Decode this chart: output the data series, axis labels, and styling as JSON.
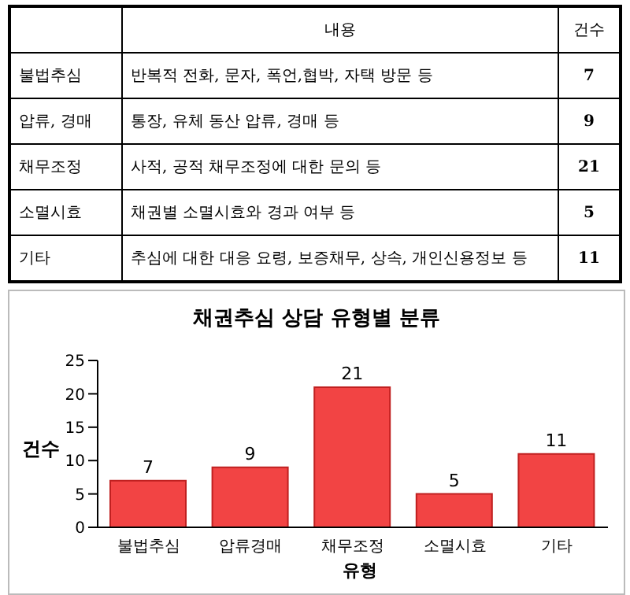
{
  "chart_data": {
    "type": "bar",
    "title": "채권추심 상담 유형별 분류",
    "xlabel": "유형",
    "ylabel": "건수",
    "categories": [
      "불법추심",
      "압류경매",
      "채무조정",
      "소멸시효",
      "기타"
    ],
    "values": [
      7,
      9,
      21,
      5,
      11
    ],
    "color": "#f24444",
    "ylim": [
      0,
      25
    ],
    "yticks": [
      0,
      5,
      10,
      15,
      20,
      25
    ],
    "grid": false,
    "legend": false,
    "data_labels": true,
    "annotations": [
      "내용",
      "건수",
      "불법추심",
      "반복적 전화, 문자, 폭언,협박, 자택 방문 등",
      "7",
      "압류, 경매",
      "통장, 유체 동산 압류, 경매 등",
      "9",
      "채무조정",
      "사적, 공적 채무조정에 대한 문의 등",
      "21",
      "소멸시효",
      "채권별 소멸시효와 경과 여부 등",
      "5",
      "기타",
      "추심에 대한 대응 요령, 보증채무, 상속, 개인신용정보 등",
      "11"
    ]
  }
}
